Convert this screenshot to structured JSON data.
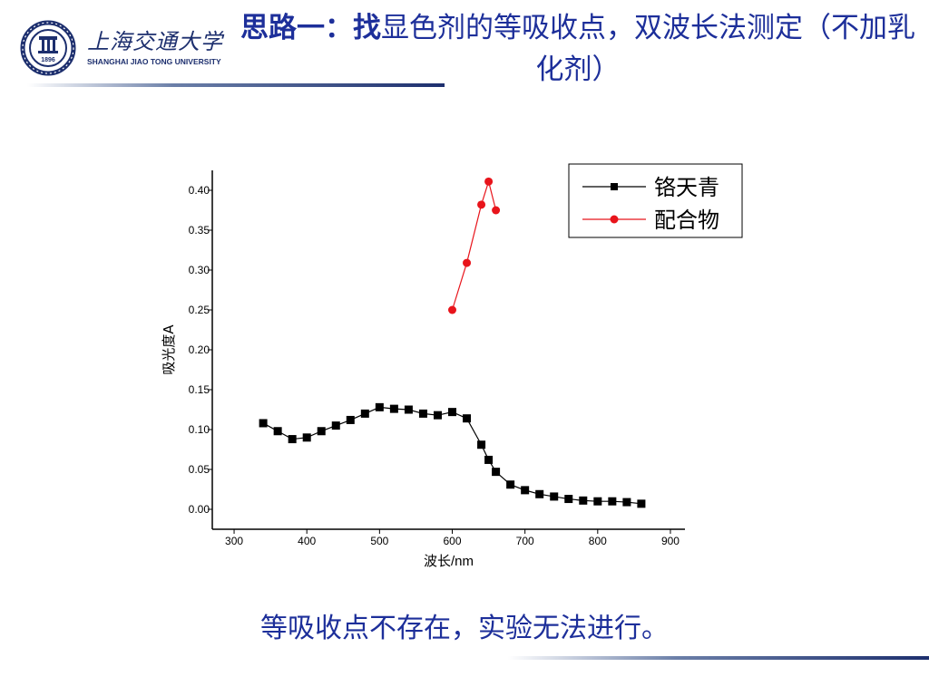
{
  "header": {
    "logo": {
      "name_cn": "上海交通大学",
      "name_en": "SHANGHAI JIAO TONG UNIVERSITY",
      "seal_year": "1896"
    },
    "title_bold": "思路一：找",
    "title_rest": "显色剂的等吸收点，双波长法测定（不加乳化剂）"
  },
  "conclusion": "等吸收点不存在，实验无法进行。",
  "colors": {
    "title": "#1d2f9a",
    "logo": "#1d2f6e",
    "series_1": "#000000",
    "series_2": "#e8141b"
  },
  "chart_data": {
    "type": "line",
    "xlabel": "波长/nm",
    "ylabel": "吸光度A",
    "xlim": [
      270,
      920
    ],
    "ylim": [
      -0.025,
      0.425
    ],
    "xticks": [
      300,
      400,
      500,
      600,
      700,
      800,
      900
    ],
    "yticks": [
      0.0,
      0.05,
      0.1,
      0.15,
      0.2,
      0.25,
      0.3,
      0.35,
      0.4
    ],
    "ytick_labels": [
      "0.00",
      "0.05",
      "0.10",
      "0.15",
      "0.20",
      "0.25",
      "0.30",
      "0.35",
      "0.40"
    ],
    "grid": false,
    "legend_position": "top-right",
    "series": [
      {
        "name": "铬天青",
        "marker": "square",
        "color": "#000000",
        "x": [
          340,
          360,
          380,
          400,
          420,
          440,
          460,
          480,
          500,
          520,
          540,
          560,
          580,
          600,
          620,
          640,
          650,
          660,
          680,
          700,
          720,
          740,
          760,
          780,
          800,
          820,
          840,
          860
        ],
        "y": [
          0.108,
          0.098,
          0.088,
          0.09,
          0.098,
          0.105,
          0.112,
          0.12,
          0.128,
          0.126,
          0.125,
          0.12,
          0.118,
          0.122,
          0.114,
          0.081,
          0.062,
          0.047,
          0.031,
          0.024,
          0.019,
          0.016,
          0.013,
          0.011,
          0.01,
          0.01,
          0.009,
          0.007
        ]
      },
      {
        "name": "配合物",
        "marker": "circle",
        "color": "#e8141b",
        "x": [
          600,
          620,
          640,
          650,
          660
        ],
        "y": [
          0.25,
          0.309,
          0.382,
          0.411,
          0.375
        ]
      }
    ]
  }
}
